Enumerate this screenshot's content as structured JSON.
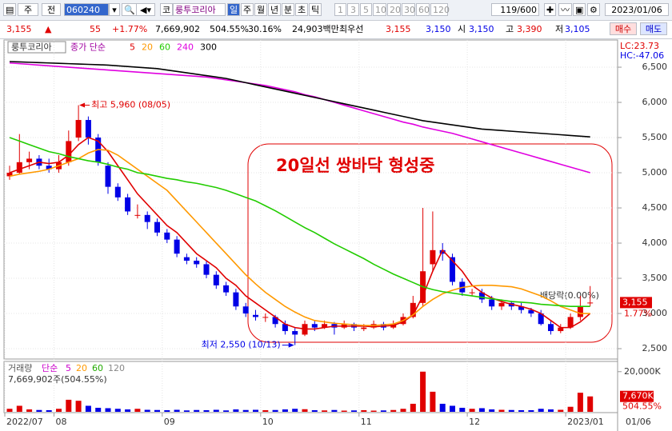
{
  "toolbar": {
    "modes": [
      "주",
      "전"
    ],
    "code": "060240",
    "market": "코",
    "name": "룽투코리아",
    "periods": [
      "일",
      "주",
      "월",
      "년",
      "분",
      "초",
      "틱"
    ],
    "intervals": [
      "1",
      "3",
      "5",
      "10",
      "20",
      "30",
      "60",
      "120"
    ],
    "count": "119/600",
    "date": "2023/01/06"
  },
  "quote": {
    "price": "3,155",
    "arrow": "▲",
    "change": "55",
    "change_rate": "+1.77%",
    "volume": "7,669,902",
    "volume_rate": "504.55%",
    "turnover": "30.16%",
    "amount": "24,903백만",
    "best_label": "최우선",
    "ask": "3,155",
    "bid": "3,150",
    "open_label": "시",
    "open": "3,150",
    "high_label": "고",
    "high": "3,390",
    "low_label": "저",
    "low": "3,105",
    "buy": "매수",
    "sell": "매도"
  },
  "chart_data": [
    {
      "type": "candlestick",
      "name_box": "룽투코리아",
      "legend_prefix": "종가 단순",
      "up_color": "#e00000",
      "down_color": "#0000e6",
      "grid": true,
      "ylim": [
        2364,
        6864
      ],
      "yticks": [
        {
          "value": 2500,
          "label": "2,500"
        },
        {
          "value": 3000,
          "label": "3,000"
        },
        {
          "value": 3500,
          "label": "3,500"
        },
        {
          "value": 4000,
          "label": "4,000"
        },
        {
          "value": 4500,
          "label": "4,500"
        },
        {
          "value": 5000,
          "label": "5,000"
        },
        {
          "value": 5500,
          "label": "5,500"
        },
        {
          "value": 6000,
          "label": "6,000"
        },
        {
          "value": 6500,
          "label": "6,500"
        }
      ],
      "open": [
        4950,
        5000,
        5150,
        5200,
        5100,
        5050,
        5150,
        5500,
        5750,
        5500,
        5100,
        4800,
        4650,
        4400,
        4400,
        4300,
        4150,
        4050,
        3800,
        3750,
        3700,
        3550,
        3400,
        3300,
        3100,
        2980,
        2950,
        2950,
        2850,
        2750,
        2700,
        2850,
        2800,
        2850,
        2800,
        2850,
        2780,
        2800,
        2850,
        2800,
        2850,
        2950,
        3150,
        3700,
        3900,
        3800,
        3450,
        3300,
        3300,
        3200,
        3100,
        3150,
        3100,
        3050,
        3000,
        2850,
        2750,
        2800,
        2950,
        3150
      ],
      "high": [
        5100,
        5550,
        5300,
        5250,
        5200,
        5250,
        5600,
        5960,
        5800,
        5550,
        5150,
        4850,
        4700,
        4550,
        4450,
        4350,
        4200,
        4100,
        3850,
        3800,
        3750,
        3600,
        3450,
        3350,
        3150,
        3050,
        3000,
        2980,
        2900,
        2800,
        2900,
        2900,
        2900,
        2880,
        2900,
        2870,
        2850,
        2900,
        2880,
        2900,
        3000,
        3250,
        4500,
        4450,
        4000,
        3850,
        3500,
        3350,
        3350,
        3250,
        3200,
        3180,
        3150,
        3080,
        3050,
        2900,
        2850,
        3000,
        3250,
        3390
      ],
      "low": [
        4900,
        4980,
        5050,
        5050,
        5000,
        5000,
        5100,
        5450,
        5400,
        5100,
        4700,
        4600,
        4400,
        4350,
        4200,
        4100,
        4000,
        3800,
        3700,
        3650,
        3500,
        3350,
        3250,
        3050,
        2950,
        2900,
        2880,
        2800,
        2700,
        2550,
        2680,
        2750,
        2780,
        2700,
        2780,
        2750,
        2750,
        2780,
        2760,
        2780,
        2830,
        2930,
        3100,
        3600,
        3750,
        3400,
        3250,
        3250,
        3150,
        3050,
        3050,
        3050,
        3000,
        2950,
        2830,
        2700,
        2720,
        2780,
        2900,
        3105
      ],
      "close": [
        5000,
        5150,
        5200,
        5100,
        5050,
        5150,
        5450,
        5750,
        5500,
        5150,
        4800,
        4650,
        4450,
        4400,
        4300,
        4150,
        4050,
        3850,
        3750,
        3700,
        3550,
        3400,
        3300,
        3100,
        3000,
        2950,
        2950,
        2850,
        2750,
        2700,
        2850,
        2800,
        2850,
        2800,
        2850,
        2800,
        2800,
        2850,
        2800,
        2850,
        2950,
        3150,
        3600,
        3900,
        3850,
        3450,
        3300,
        3300,
        3200,
        3100,
        3150,
        3100,
        3050,
        3000,
        2850,
        2750,
        2800,
        2950,
        3100,
        3155
      ],
      "series": [
        {
          "name": "5",
          "color": "#e00000",
          "values": [
            5000,
            5050,
            5100,
            5150,
            5130,
            5150,
            5250,
            5400,
            5500,
            5450,
            5300,
            5100,
            4900,
            4700,
            4550,
            4400,
            4250,
            4150,
            4000,
            3850,
            3750,
            3650,
            3500,
            3400,
            3250,
            3150,
            3050,
            2950,
            2850,
            2800,
            2780,
            2780,
            2800,
            2820,
            2820,
            2820,
            2820,
            2810,
            2820,
            2830,
            2880,
            2980,
            3250,
            3600,
            3900,
            3750,
            3600,
            3400,
            3300,
            3220,
            3170,
            3130,
            3100,
            3060,
            3000,
            2900,
            2800,
            2800,
            2880,
            3000
          ]
        },
        {
          "name": "20",
          "color": "#ff9900",
          "values": [
            4950,
            4980,
            5000,
            5020,
            5050,
            5100,
            5150,
            5200,
            5280,
            5330,
            5320,
            5250,
            5150,
            5050,
            4950,
            4850,
            4750,
            4600,
            4450,
            4300,
            4150,
            4000,
            3850,
            3700,
            3550,
            3420,
            3300,
            3200,
            3100,
            3020,
            2950,
            2900,
            2880,
            2860,
            2850,
            2840,
            2830,
            2830,
            2840,
            2850,
            2900,
            2980,
            3100,
            3200,
            3280,
            3330,
            3370,
            3390,
            3400,
            3400,
            3390,
            3380,
            3350,
            3300,
            3250,
            3180,
            3100,
            3050,
            3000,
            3000
          ]
        },
        {
          "name": "60",
          "color": "#22cc00",
          "values": [
            5500,
            5450,
            5400,
            5350,
            5300,
            5270,
            5230,
            5200,
            5170,
            5150,
            5120,
            5080,
            5050,
            5000,
            4980,
            4950,
            4920,
            4900,
            4870,
            4850,
            4820,
            4790,
            4750,
            4700,
            4650,
            4600,
            4530,
            4460,
            4380,
            4300,
            4220,
            4150,
            4070,
            3990,
            3920,
            3850,
            3780,
            3700,
            3630,
            3560,
            3500,
            3440,
            3380,
            3340,
            3310,
            3290,
            3270,
            3250,
            3230,
            3210,
            3190,
            3170,
            3160,
            3150,
            3130,
            3120,
            3110,
            3100,
            3100,
            3100
          ]
        },
        {
          "name": "240",
          "color": "#e000e0",
          "values": [
            6560,
            6550,
            6540,
            6530,
            6520,
            6510,
            6500,
            6490,
            6480,
            6470,
            6460,
            6450,
            6440,
            6430,
            6420,
            6410,
            6400,
            6390,
            6380,
            6370,
            6360,
            6340,
            6320,
            6300,
            6280,
            6260,
            6240,
            6210,
            6180,
            6150,
            6110,
            6080,
            6040,
            6000,
            5960,
            5920,
            5880,
            5840,
            5800,
            5760,
            5720,
            5690,
            5650,
            5620,
            5590,
            5560,
            5520,
            5480,
            5440,
            5400,
            5360,
            5320,
            5280,
            5240,
            5200,
            5160,
            5120,
            5080,
            5040,
            5000
          ]
        },
        {
          "name": "300",
          "color": "#000000",
          "values": [
            6580,
            6575,
            6570,
            6565,
            6560,
            6555,
            6550,
            6545,
            6540,
            6535,
            6530,
            6520,
            6510,
            6500,
            6490,
            6480,
            6460,
            6440,
            6420,
            6400,
            6380,
            6360,
            6340,
            6310,
            6280,
            6250,
            6220,
            6190,
            6160,
            6130,
            6100,
            6070,
            6040,
            6010,
            5980,
            5950,
            5920,
            5890,
            5860,
            5830,
            5800,
            5770,
            5740,
            5720,
            5700,
            5680,
            5660,
            5640,
            5620,
            5610,
            5600,
            5590,
            5580,
            5570,
            5560,
            5550,
            5540,
            5530,
            5520,
            5510
          ]
        }
      ],
      "high_note": "최고 5,960 (08/05)",
      "low_note": "최저 2,550 (10/13)",
      "pattern_note": "20일선 쌍바닥 형성중",
      "dividend_note": "배당락(0.00%)",
      "lc": "LC:23.73",
      "hc": "HC:-47.06",
      "last_label": "3,155",
      "last_change": "1.77%"
    },
    {
      "type": "bar",
      "legend": [
        {
          "name": "거래량",
          "color": "#555555"
        },
        {
          "name": "단순",
          "color": "#cc00cc"
        },
        {
          "name": "5",
          "color": "#cc00cc"
        },
        {
          "name": "20",
          "color": "#ff9900"
        },
        {
          "name": "60",
          "color": "#22aa00"
        },
        {
          "name": "120",
          "color": "#888888"
        }
      ],
      "subtitle": "7,669,902주(504.55%)",
      "ylim": [
        0,
        23500000
      ],
      "yticks": [
        {
          "value": 20000000,
          "label": "20,000K"
        }
      ],
      "categories": [
        "2022/07",
        null,
        null,
        null,
        null,
        "08",
        null,
        null,
        null,
        null,
        null,
        null,
        null,
        null,
        null,
        null,
        "09",
        null,
        null,
        null,
        null,
        null,
        null,
        null,
        null,
        null,
        "10",
        null,
        null,
        null,
        null,
        null,
        null,
        null,
        null,
        null,
        "11",
        null,
        null,
        null,
        null,
        null,
        null,
        null,
        null,
        null,
        null,
        "12",
        null,
        null,
        null,
        null,
        null,
        null,
        null,
        null,
        null,
        "2023/01",
        null,
        null
      ],
      "values": [
        1500000,
        3000000,
        1200000,
        900000,
        800000,
        1500000,
        6000000,
        5500000,
        3000000,
        2000000,
        1800000,
        1500000,
        1200000,
        1500000,
        1000000,
        900000,
        800000,
        1000000,
        700000,
        900000,
        800000,
        1000000,
        700000,
        1200000,
        900000,
        1000000,
        800000,
        900000,
        1200000,
        1500000,
        1300000,
        800000,
        700000,
        900000,
        600000,
        700000,
        800000,
        600000,
        700000,
        900000,
        1500000,
        4000000,
        20000000,
        10000000,
        4000000,
        3000000,
        2000000,
        1500000,
        1800000,
        1200000,
        1000000,
        900000,
        800000,
        800000,
        1500000,
        1200000,
        1000000,
        2500000,
        9500000,
        7669902
      ],
      "last_label": "7,670K",
      "last_rate": "504.55%",
      "end_date": "01/06"
    }
  ]
}
